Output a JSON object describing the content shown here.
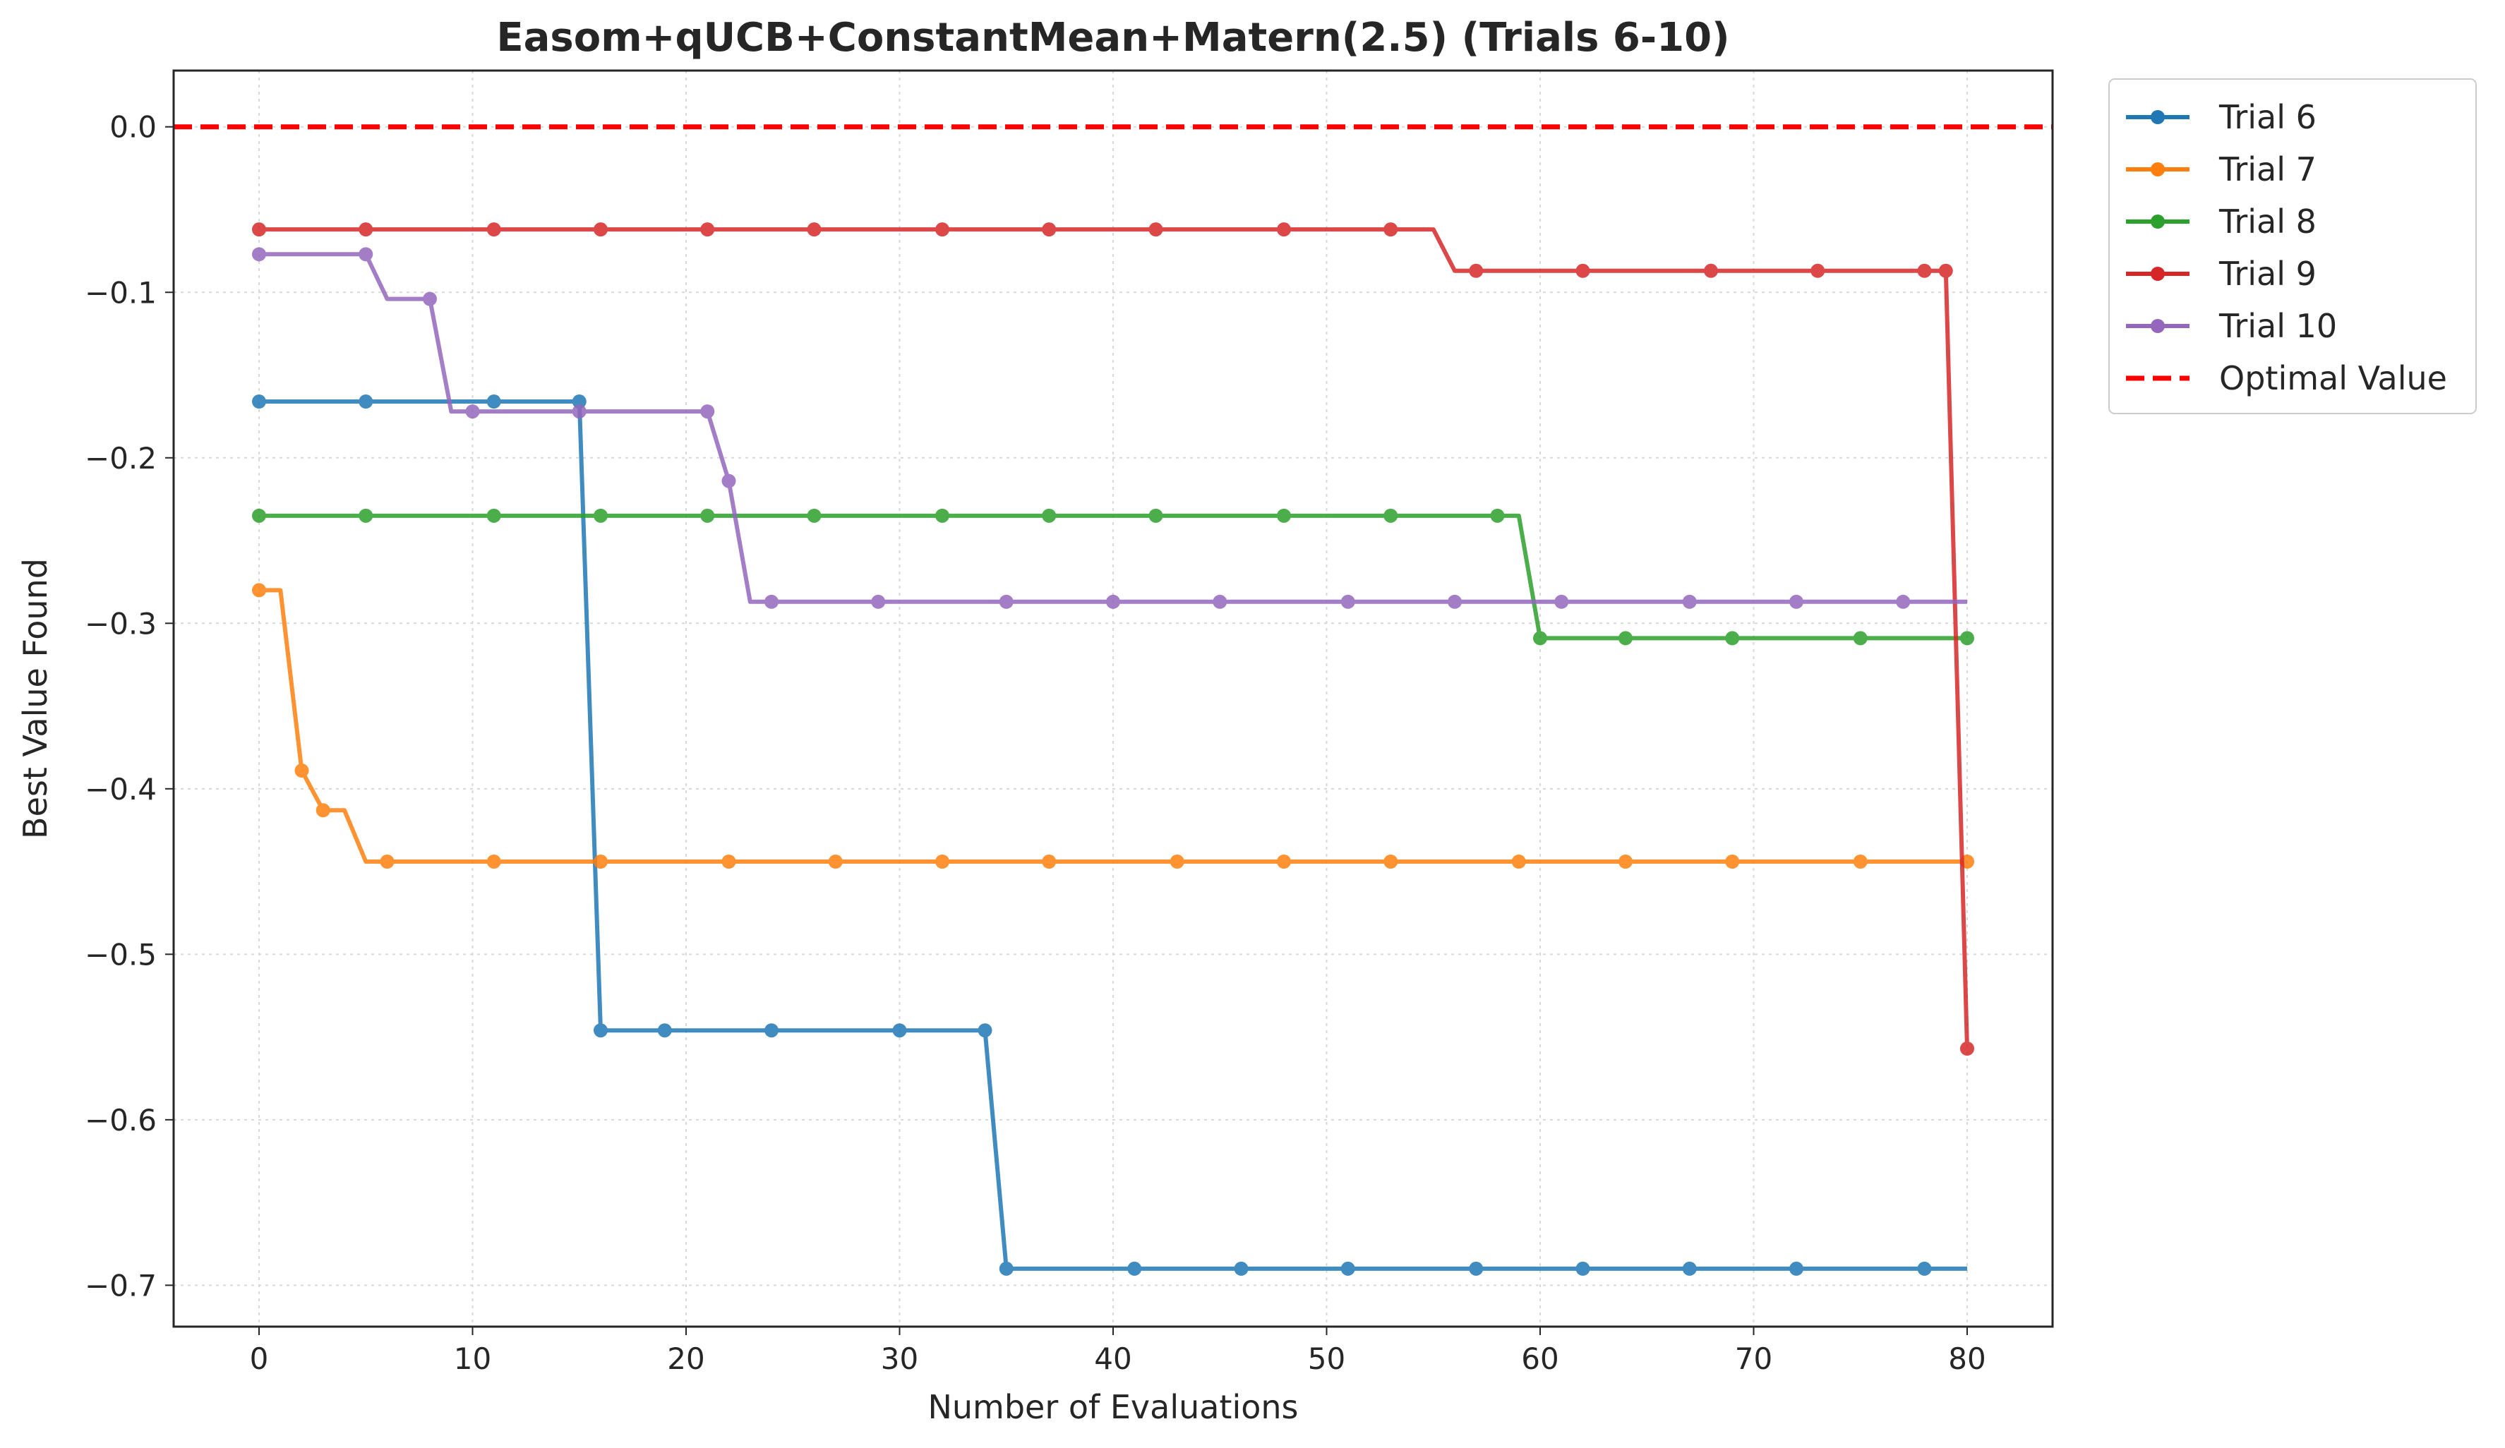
{
  "chart_data": {
    "type": "line",
    "title": "Easom+qUCB+ConstantMean+Matern(2.5) (Trials 6-10)",
    "xlabel": "Number of Evaluations",
    "ylabel": "Best Value Found",
    "xlim": [
      -4,
      84
    ],
    "ylim": [
      -0.725,
      0.034
    ],
    "xticks": [
      0,
      10,
      20,
      30,
      40,
      50,
      60,
      70,
      80
    ],
    "xtick_labels": [
      "0",
      "10",
      "20",
      "30",
      "40",
      "50",
      "60",
      "70",
      "80"
    ],
    "yticks": [
      0.0,
      -0.1,
      -0.2,
      -0.3,
      -0.4,
      -0.5,
      -0.6,
      -0.7
    ],
    "ytick_labels": [
      "0.0",
      "−0.1",
      "−0.2",
      "−0.3",
      "−0.4",
      "−0.5",
      "−0.6",
      "−0.7"
    ],
    "grid": true,
    "legend_position": "outside-right-top",
    "series": [
      {
        "name": "Trial 6",
        "color": "#1f77b4",
        "line": [
          [
            0,
            -0.166
          ],
          [
            15,
            -0.166
          ],
          [
            16,
            -0.546
          ],
          [
            34,
            -0.546
          ],
          [
            35,
            -0.69
          ],
          [
            80,
            -0.69
          ]
        ],
        "markers": [
          [
            0,
            -0.166
          ],
          [
            5,
            -0.166
          ],
          [
            11,
            -0.166
          ],
          [
            15,
            -0.166
          ],
          [
            16,
            -0.546
          ],
          [
            19,
            -0.546
          ],
          [
            24,
            -0.546
          ],
          [
            30,
            -0.546
          ],
          [
            34,
            -0.546
          ],
          [
            35,
            -0.69
          ],
          [
            41,
            -0.69
          ],
          [
            46,
            -0.69
          ],
          [
            51,
            -0.69
          ],
          [
            57,
            -0.69
          ],
          [
            62,
            -0.69
          ],
          [
            67,
            -0.69
          ],
          [
            72,
            -0.69
          ],
          [
            78,
            -0.69
          ]
        ]
      },
      {
        "name": "Trial 7",
        "color": "#ff7f0e",
        "line": [
          [
            0,
            -0.28
          ],
          [
            1,
            -0.28
          ],
          [
            2,
            -0.389
          ],
          [
            3,
            -0.413
          ],
          [
            4,
            -0.413
          ],
          [
            5,
            -0.444
          ],
          [
            80,
            -0.444
          ]
        ],
        "markers": [
          [
            0,
            -0.28
          ],
          [
            2,
            -0.389
          ],
          [
            3,
            -0.413
          ],
          [
            6,
            -0.444
          ],
          [
            11,
            -0.444
          ],
          [
            16,
            -0.444
          ],
          [
            22,
            -0.444
          ],
          [
            27,
            -0.444
          ],
          [
            32,
            -0.444
          ],
          [
            37,
            -0.444
          ],
          [
            43,
            -0.444
          ],
          [
            48,
            -0.444
          ],
          [
            53,
            -0.444
          ],
          [
            59,
            -0.444
          ],
          [
            64,
            -0.444
          ],
          [
            69,
            -0.444
          ],
          [
            75,
            -0.444
          ],
          [
            80,
            -0.444
          ]
        ]
      },
      {
        "name": "Trial 8",
        "color": "#2ca02c",
        "line": [
          [
            0,
            -0.235
          ],
          [
            59,
            -0.235
          ],
          [
            60,
            -0.309
          ],
          [
            80,
            -0.309
          ]
        ],
        "markers": [
          [
            0,
            -0.235
          ],
          [
            5,
            -0.235
          ],
          [
            11,
            -0.235
          ],
          [
            16,
            -0.235
          ],
          [
            21,
            -0.235
          ],
          [
            26,
            -0.235
          ],
          [
            32,
            -0.235
          ],
          [
            37,
            -0.235
          ],
          [
            42,
            -0.235
          ],
          [
            48,
            -0.235
          ],
          [
            53,
            -0.235
          ],
          [
            58,
            -0.235
          ],
          [
            60,
            -0.309
          ],
          [
            64,
            -0.309
          ],
          [
            69,
            -0.309
          ],
          [
            75,
            -0.309
          ],
          [
            80,
            -0.309
          ]
        ]
      },
      {
        "name": "Trial 9",
        "color": "#d62728",
        "line": [
          [
            0,
            -0.062
          ],
          [
            55,
            -0.062
          ],
          [
            56,
            -0.087
          ],
          [
            79,
            -0.087
          ],
          [
            80,
            -0.557
          ]
        ],
        "markers": [
          [
            0,
            -0.062
          ],
          [
            5,
            -0.062
          ],
          [
            11,
            -0.062
          ],
          [
            16,
            -0.062
          ],
          [
            21,
            -0.062
          ],
          [
            26,
            -0.062
          ],
          [
            32,
            -0.062
          ],
          [
            37,
            -0.062
          ],
          [
            42,
            -0.062
          ],
          [
            48,
            -0.062
          ],
          [
            53,
            -0.062
          ],
          [
            57,
            -0.087
          ],
          [
            62,
            -0.087
          ],
          [
            68,
            -0.087
          ],
          [
            73,
            -0.087
          ],
          [
            78,
            -0.087
          ],
          [
            79,
            -0.087
          ],
          [
            80,
            -0.557
          ]
        ]
      },
      {
        "name": "Trial 10",
        "color": "#9467bd",
        "line": [
          [
            0,
            -0.077
          ],
          [
            5,
            -0.077
          ],
          [
            6,
            -0.104
          ],
          [
            8,
            -0.104
          ],
          [
            9,
            -0.172
          ],
          [
            21,
            -0.172
          ],
          [
            22,
            -0.214
          ],
          [
            23,
            -0.287
          ],
          [
            80,
            -0.287
          ]
        ],
        "markers": [
          [
            0,
            -0.077
          ],
          [
            5,
            -0.077
          ],
          [
            8,
            -0.104
          ],
          [
            10,
            -0.172
          ],
          [
            15,
            -0.172
          ],
          [
            21,
            -0.172
          ],
          [
            22,
            -0.214
          ],
          [
            24,
            -0.287
          ],
          [
            29,
            -0.287
          ],
          [
            35,
            -0.287
          ],
          [
            40,
            -0.287
          ],
          [
            45,
            -0.287
          ],
          [
            51,
            -0.287
          ],
          [
            56,
            -0.287
          ],
          [
            61,
            -0.287
          ],
          [
            67,
            -0.287
          ],
          [
            72,
            -0.287
          ],
          [
            77,
            -0.287
          ]
        ]
      }
    ],
    "reference_line": {
      "name": "Optimal Value",
      "y": 0.0,
      "color": "#ff0000",
      "style": "dashed"
    }
  }
}
